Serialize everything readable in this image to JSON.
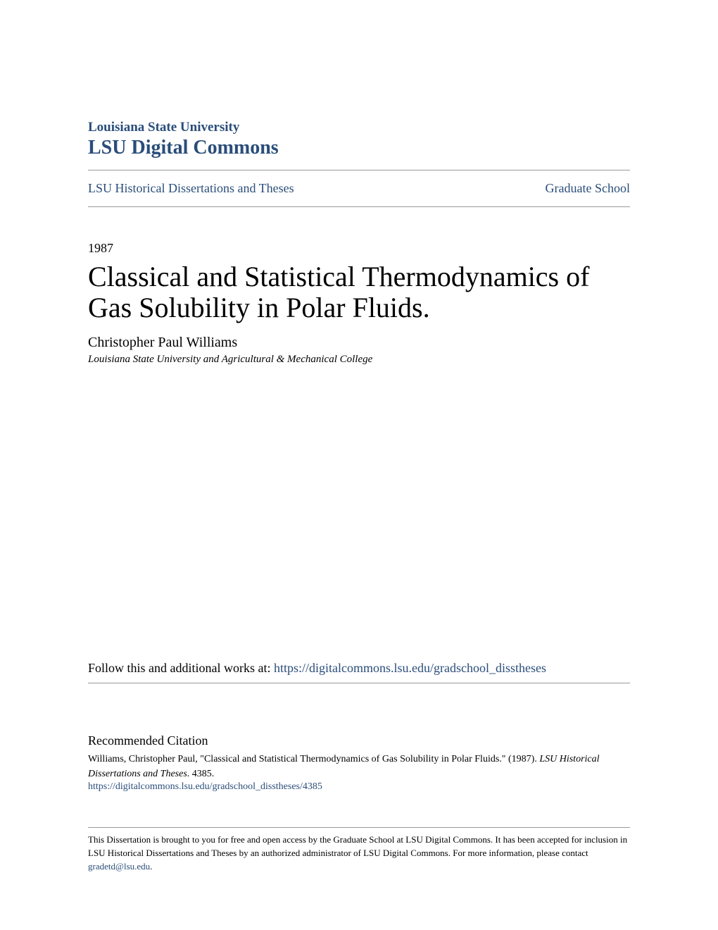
{
  "header": {
    "university": "Louisiana State University",
    "repository": "LSU Digital Commons"
  },
  "breadcrumb": {
    "left": "LSU Historical Dissertations and Theses",
    "right": "Graduate School"
  },
  "document": {
    "year": "1987",
    "title": "Classical and Statistical Thermodynamics of Gas Solubility in Polar Fluids.",
    "author": "Christopher Paul Williams",
    "affiliation": "Louisiana State University and Agricultural & Mechanical College"
  },
  "follow": {
    "prefix": "Follow this and additional works at: ",
    "url": "https://digitalcommons.lsu.edu/gradschool_disstheses"
  },
  "citation": {
    "heading": "Recommended Citation",
    "text_part1": "Williams, Christopher Paul, \"Classical and Statistical Thermodynamics of Gas Solubility in Polar Fluids.\" (1987). ",
    "text_italic": "LSU Historical Dissertations and Theses",
    "text_part2": ". 4385.",
    "url": "https://digitalcommons.lsu.edu/gradschool_disstheses/4385"
  },
  "footer": {
    "text": "This Dissertation is brought to you for free and open access by the Graduate School at LSU Digital Commons. It has been accepted for inclusion in LSU Historical Dissertations and Theses by an authorized administrator of LSU Digital Commons. For more information, please contact ",
    "email": "gradetd@lsu.edu",
    "suffix": "."
  },
  "colors": {
    "link": "#2a4d7a",
    "text": "#000000",
    "divider": "#999999",
    "background": "#ffffff"
  }
}
